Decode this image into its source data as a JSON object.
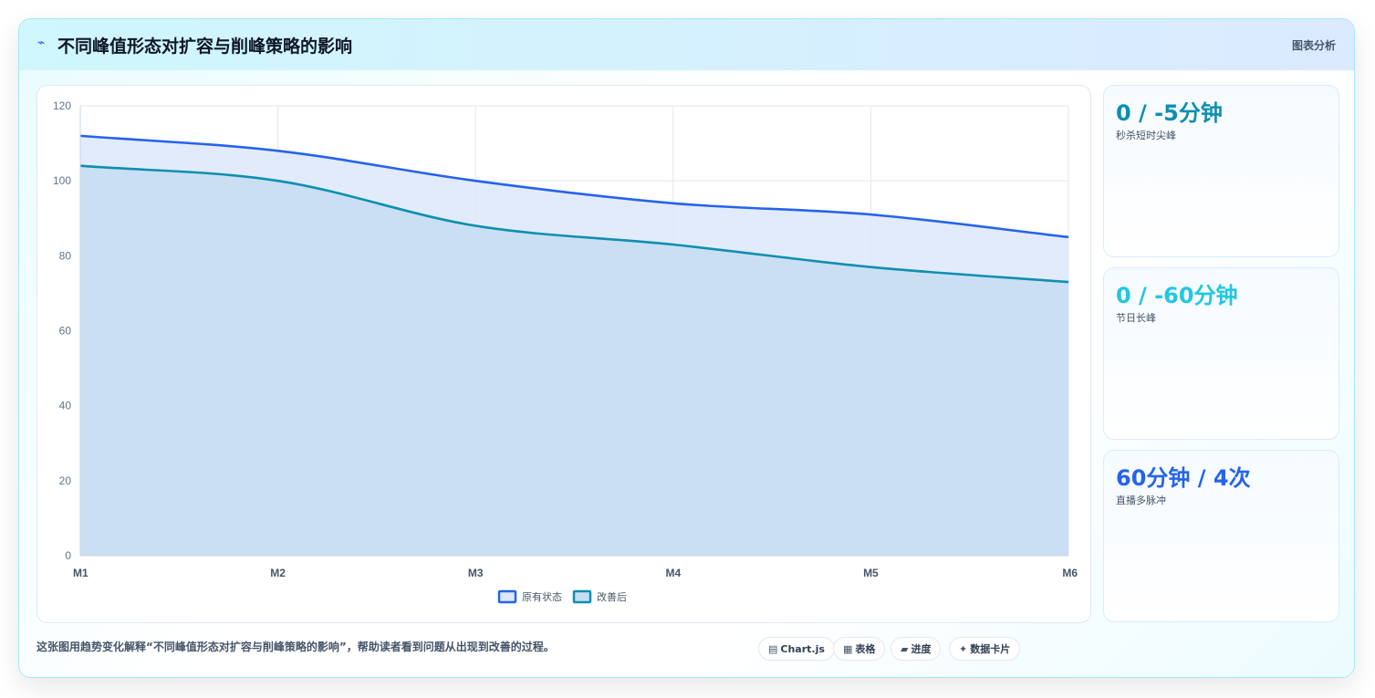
{
  "header": {
    "icon": "chart-trend-icon",
    "title": "不同峰值形态对扩容与削峰策略的影响",
    "tag": "图表分析"
  },
  "chart_data": {
    "type": "area",
    "title": "",
    "xlabel": "",
    "ylabel": "",
    "categories": [
      "M1",
      "M2",
      "M3",
      "M4",
      "M5",
      "M6"
    ],
    "ylim": [
      0,
      120
    ],
    "yticks": [
      0,
      20,
      40,
      60,
      80,
      100,
      120
    ],
    "grid": true,
    "legend_position": "bottom",
    "series": [
      {
        "name": "原有状态",
        "values": [
          112,
          108,
          100,
          94,
          91,
          85
        ],
        "color": "#2563eb",
        "fill": "#dde8fb"
      },
      {
        "name": "改善后",
        "values": [
          104,
          100,
          88,
          83,
          77,
          73
        ],
        "color": "#0e8fb0",
        "fill": "#c5ddf2"
      }
    ]
  },
  "stats": [
    {
      "value": "0 / -5分钟",
      "label": "秒杀短时尖峰",
      "color": "#0e8fb0"
    },
    {
      "value": "0 / -60分钟",
      "label": "节日长峰",
      "color": "#22c7e0"
    },
    {
      "value": "60分钟 / 4次",
      "label": "直播多脉冲",
      "color": "#2563eb"
    }
  ],
  "footer": {
    "text": "这张图用趋势变化解释“不同峰值形态对扩容与削峰策略的影响”，帮助读者看到问题从出现到改善的过程。",
    "pills": [
      {
        "icon": "chart-icon",
        "glyph": "▤",
        "label": "Chart.js"
      },
      {
        "icon": "table-icon",
        "glyph": "▦",
        "label": "表格"
      },
      {
        "icon": "progress-icon",
        "glyph": "▰",
        "label": "进度"
      },
      {
        "icon": "sparkle-icon",
        "glyph": "✦",
        "label": "数据卡片"
      }
    ]
  }
}
